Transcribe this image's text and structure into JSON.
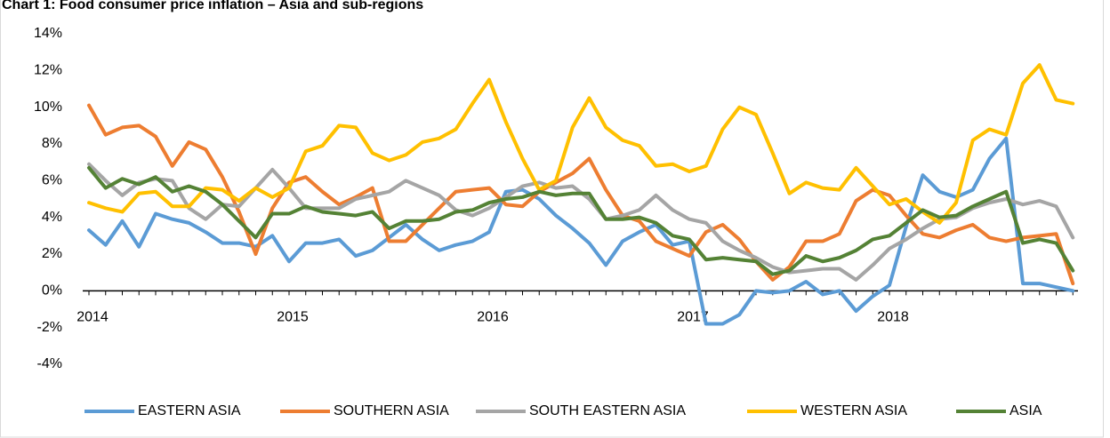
{
  "chart_data": {
    "type": "line",
    "title": "Chart 1: Food consumer price inflation – Asia and sub-regions",
    "categories": [
      "2014",
      null,
      null,
      null,
      null,
      null,
      null,
      null,
      null,
      null,
      null,
      null,
      "2015",
      null,
      null,
      null,
      null,
      null,
      null,
      null,
      null,
      null,
      null,
      null,
      "2016",
      null,
      null,
      null,
      null,
      null,
      null,
      null,
      null,
      null,
      null,
      null,
      "2017",
      null,
      null,
      null,
      null,
      null,
      null,
      null,
      null,
      null,
      null,
      null,
      "2018",
      null,
      null,
      null,
      null,
      null,
      null,
      null,
      null,
      null,
      null,
      null
    ],
    "series": [
      {
        "name": "EASTERN ASIA",
        "color": "#5b9bd5",
        "values": [
          3.3,
          2.5,
          3.8,
          2.4,
          4.2,
          3.9,
          3.7,
          3.2,
          2.6,
          2.6,
          2.4,
          3.0,
          1.6,
          2.6,
          2.6,
          2.8,
          1.9,
          2.2,
          2.9,
          3.6,
          2.8,
          2.2,
          2.5,
          2.7,
          3.2,
          5.4,
          5.5,
          5.0,
          4.1,
          3.4,
          2.6,
          1.4,
          2.7,
          3.2,
          3.6,
          2.5,
          2.7,
          -1.8,
          -1.8,
          -1.3,
          0.0,
          -0.1,
          0.0,
          0.5,
          -0.2,
          0.0,
          -1.1,
          -0.3,
          0.3,
          3.5,
          6.3,
          5.4,
          5.1,
          5.5,
          7.2,
          8.3,
          0.4,
          0.4,
          0.2,
          0.0
        ]
      },
      {
        "name": "SOUTHERN ASIA",
        "color": "#ed7d31",
        "values": [
          10.1,
          8.5,
          8.9,
          9.0,
          8.4,
          6.8,
          8.1,
          7.7,
          6.2,
          4.3,
          2.0,
          4.5,
          5.9,
          6.2,
          5.4,
          4.7,
          5.1,
          5.6,
          2.7,
          2.7,
          3.6,
          4.5,
          5.4,
          5.5,
          5.6,
          4.7,
          4.6,
          5.4,
          5.9,
          6.4,
          7.2,
          5.5,
          4.1,
          3.8,
          2.7,
          2.3,
          1.9,
          3.2,
          3.6,
          2.8,
          1.6,
          0.6,
          1.3,
          2.7,
          2.7,
          3.1,
          4.9,
          5.5,
          5.2,
          4.1,
          3.1,
          2.9,
          3.3,
          3.6,
          2.9,
          2.7,
          2.9,
          3.0,
          3.1,
          0.4
        ]
      },
      {
        "name": "SOUTH EASTERN ASIA",
        "color": "#a5a5a5",
        "values": [
          6.9,
          6.0,
          5.2,
          5.9,
          6.1,
          6.0,
          4.5,
          3.9,
          4.7,
          4.6,
          5.6,
          6.6,
          5.6,
          4.5,
          4.5,
          4.5,
          5.0,
          5.2,
          5.4,
          6.0,
          5.6,
          5.2,
          4.4,
          4.1,
          4.5,
          5.1,
          5.7,
          5.9,
          5.6,
          5.7,
          5.0,
          3.9,
          4.1,
          4.4,
          5.2,
          4.4,
          3.9,
          3.7,
          2.7,
          2.2,
          1.8,
          1.3,
          1.0,
          1.1,
          1.2,
          1.2,
          0.6,
          1.4,
          2.3,
          2.8,
          3.4,
          3.9,
          4.0,
          4.5,
          4.8,
          5.0,
          4.7,
          4.9,
          4.6,
          2.9
        ]
      },
      {
        "name": "WESTERN ASIA",
        "color": "#ffc000",
        "values": [
          4.8,
          4.5,
          4.3,
          5.3,
          5.4,
          4.6,
          4.6,
          5.6,
          5.5,
          4.9,
          5.6,
          5.1,
          5.6,
          7.6,
          7.9,
          9.0,
          8.9,
          7.5,
          7.1,
          7.4,
          8.1,
          8.3,
          8.8,
          10.2,
          11.5,
          9.2,
          7.2,
          5.5,
          6.0,
          8.9,
          10.5,
          8.9,
          8.2,
          7.9,
          6.8,
          6.9,
          6.5,
          6.8,
          8.8,
          10.0,
          9.6,
          7.5,
          5.3,
          5.9,
          5.6,
          5.5,
          6.7,
          5.7,
          4.7,
          5.0,
          4.3,
          3.7,
          4.8,
          8.2,
          8.8,
          8.5,
          11.3,
          12.3,
          10.4,
          10.2
        ]
      },
      {
        "name": "ASIA",
        "color": "#548235",
        "values": [
          6.7,
          5.6,
          6.1,
          5.8,
          6.2,
          5.4,
          5.7,
          5.4,
          4.7,
          3.8,
          2.9,
          4.2,
          4.2,
          4.6,
          4.3,
          4.2,
          4.1,
          4.3,
          3.4,
          3.8,
          3.8,
          3.9,
          4.3,
          4.4,
          4.8,
          5.0,
          5.1,
          5.4,
          5.2,
          5.3,
          5.3,
          3.9,
          3.9,
          4.0,
          3.7,
          3.0,
          2.8,
          1.7,
          1.8,
          1.7,
          1.6,
          0.9,
          1.1,
          1.9,
          1.6,
          1.8,
          2.2,
          2.8,
          3.0,
          3.7,
          4.4,
          4.0,
          4.1,
          4.6,
          5.0,
          5.4,
          2.6,
          2.8,
          2.6,
          1.1
        ]
      }
    ],
    "ylim": [
      -4,
      14
    ],
    "yticks": [
      {
        "value": -4,
        "label": "-4%"
      },
      {
        "value": -2,
        "label": "-2%"
      },
      {
        "value": 0,
        "label": "0%"
      },
      {
        "value": 2,
        "label": "2%"
      },
      {
        "value": 4,
        "label": "4%"
      },
      {
        "value": 6,
        "label": "6%"
      },
      {
        "value": 8,
        "label": "8%"
      },
      {
        "value": 10,
        "label": "10%"
      },
      {
        "value": 12,
        "label": "12%"
      },
      {
        "value": 14,
        "label": "14%"
      }
    ],
    "legend": "bottom"
  }
}
